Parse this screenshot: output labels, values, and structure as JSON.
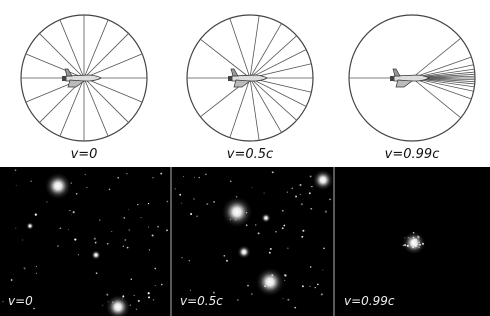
{
  "diagrams": [
    {
      "label": "v=0"
    },
    {
      "label": "v=0.5c"
    },
    {
      "label": "v=0.99c"
    }
  ],
  "sky_views": [
    {
      "label": "v=0"
    },
    {
      "label": "v=0.5c"
    },
    {
      "label": "v=0.99c"
    }
  ]
}
